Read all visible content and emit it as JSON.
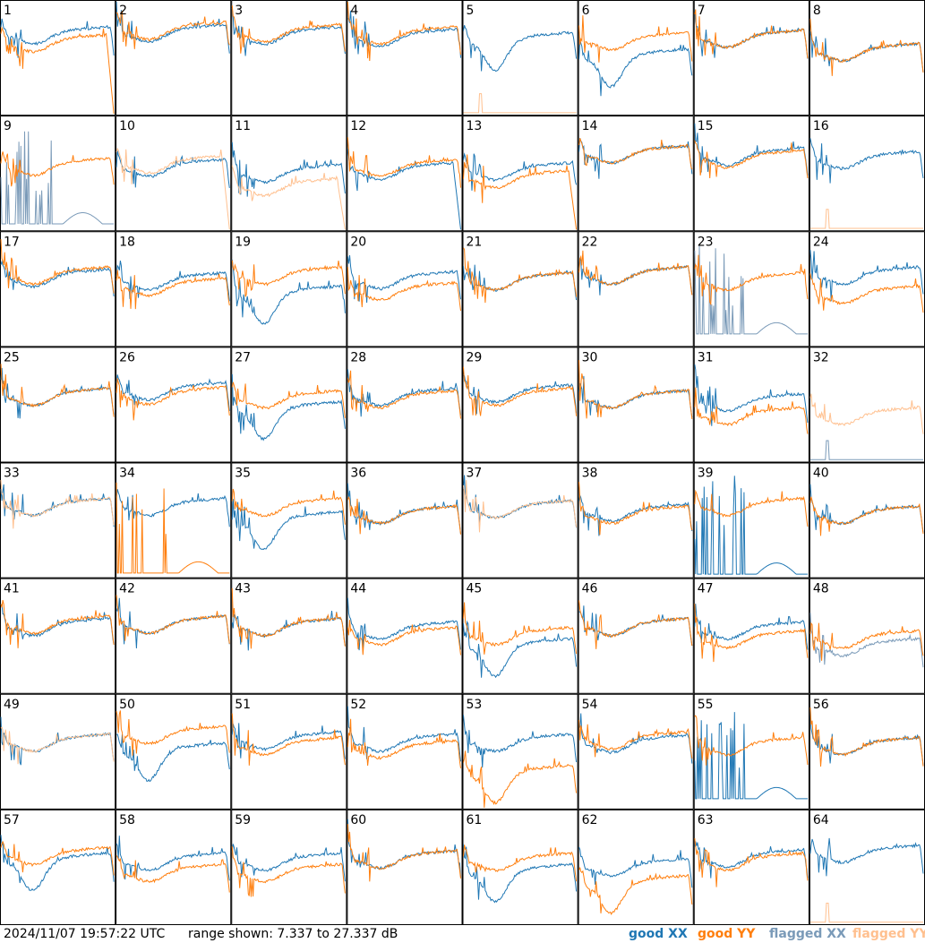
{
  "chart_data": {
    "type": "line",
    "title": "",
    "timestamp": "2024/11/07 19:57:22 UTC",
    "range_label": "range shown: 7.337 to 27.337 dB",
    "ylim": [
      7.337,
      27.337
    ],
    "grid_rows": 8,
    "grid_cols": 8,
    "legend": [
      {
        "key": "goodXX",
        "label": "good XX",
        "color": "#1f77b4"
      },
      {
        "key": "goodYY",
        "label": "good YY",
        "color": "#ff7f0e"
      },
      {
        "key": "flaggedXX",
        "label": "flagged XX",
        "color": "#7a9ab8"
      },
      {
        "key": "flaggedYY",
        "label": "flagged YY",
        "color": "#ffc08f"
      }
    ],
    "panels": [
      {
        "id": 1,
        "xx": {
          "state": "good",
          "style": "regular",
          "lvl": 0.7
        },
        "yy": {
          "state": "good",
          "style": "dropout",
          "lvl": 0.63
        }
      },
      {
        "id": 2,
        "xx": {
          "state": "good",
          "style": "regular",
          "lvl": 0.72
        },
        "yy": {
          "state": "good",
          "style": "regular",
          "lvl": 0.74
        }
      },
      {
        "id": 3,
        "xx": {
          "state": "good",
          "style": "regular",
          "lvl": 0.7
        },
        "yy": {
          "state": "good",
          "style": "regular",
          "lvl": 0.72
        }
      },
      {
        "id": 4,
        "xx": {
          "state": "good",
          "style": "regular",
          "lvl": 0.68
        },
        "yy": {
          "state": "good",
          "style": "regular",
          "lvl": 0.7
        }
      },
      {
        "id": 5,
        "xx": {
          "state": "good",
          "style": "trough",
          "lvl": 0.65
        },
        "yy": {
          "state": "flagged",
          "style": "flat",
          "lvl": 0.01
        }
      },
      {
        "id": 6,
        "xx": {
          "state": "good",
          "style": "trough",
          "lvl": 0.5
        },
        "yy": {
          "state": "good",
          "style": "regular",
          "lvl": 0.65
        }
      },
      {
        "id": 7,
        "xx": {
          "state": "good",
          "style": "regular",
          "lvl": 0.67
        },
        "yy": {
          "state": "good",
          "style": "regular",
          "lvl": 0.67
        }
      },
      {
        "id": 8,
        "xx": {
          "state": "good",
          "style": "regular",
          "lvl": 0.55
        },
        "yy": {
          "state": "good",
          "style": "regular",
          "lvl": 0.55
        }
      },
      {
        "id": 9,
        "xx": {
          "state": "flagged",
          "style": "spiky",
          "lvl": 0.05
        },
        "yy": {
          "state": "good",
          "style": "regular",
          "lvl": 0.56
        }
      },
      {
        "id": 10,
        "xx": {
          "state": "good",
          "style": "regular",
          "lvl": 0.55
        },
        "yy": {
          "state": "flagged",
          "style": "dropout",
          "lvl": 0.58
        }
      },
      {
        "id": 11,
        "xx": {
          "state": "good",
          "style": "regular",
          "lvl": 0.5
        },
        "yy": {
          "state": "flagged",
          "style": "dropout",
          "lvl": 0.38
        }
      },
      {
        "id": 12,
        "xx": {
          "state": "good",
          "style": "dropout",
          "lvl": 0.52
        },
        "yy": {
          "state": "good",
          "style": "regular",
          "lvl": 0.55
        }
      },
      {
        "id": 13,
        "xx": {
          "state": "good",
          "style": "regular",
          "lvl": 0.52
        },
        "yy": {
          "state": "good",
          "style": "dropout",
          "lvl": 0.45
        }
      },
      {
        "id": 14,
        "xx": {
          "state": "good",
          "style": "regular",
          "lvl": 0.67
        },
        "yy": {
          "state": "good",
          "style": "regular",
          "lvl": 0.67
        }
      },
      {
        "id": 15,
        "xx": {
          "state": "good",
          "style": "regular",
          "lvl": 0.65
        },
        "yy": {
          "state": "good",
          "style": "regular",
          "lvl": 0.63
        }
      },
      {
        "id": 16,
        "xx": {
          "state": "good",
          "style": "regular",
          "lvl": 0.62
        },
        "yy": {
          "state": "flagged",
          "style": "flat",
          "lvl": 0.01
        }
      },
      {
        "id": 17,
        "xx": {
          "state": "good",
          "style": "regular",
          "lvl": 0.6
        },
        "yy": {
          "state": "good",
          "style": "regular",
          "lvl": 0.62
        }
      },
      {
        "id": 18,
        "xx": {
          "state": "good",
          "style": "regular",
          "lvl": 0.57
        },
        "yy": {
          "state": "good",
          "style": "regular",
          "lvl": 0.52
        }
      },
      {
        "id": 19,
        "xx": {
          "state": "good",
          "style": "trough",
          "lvl": 0.45
        },
        "yy": {
          "state": "good",
          "style": "regular",
          "lvl": 0.62
        }
      },
      {
        "id": 20,
        "xx": {
          "state": "good",
          "style": "regular",
          "lvl": 0.58
        },
        "yy": {
          "state": "good",
          "style": "regular",
          "lvl": 0.48
        }
      },
      {
        "id": 21,
        "xx": {
          "state": "good",
          "style": "regular",
          "lvl": 0.57
        },
        "yy": {
          "state": "good",
          "style": "regular",
          "lvl": 0.57
        }
      },
      {
        "id": 22,
        "xx": {
          "state": "good",
          "style": "regular",
          "lvl": 0.62
        },
        "yy": {
          "state": "good",
          "style": "regular",
          "lvl": 0.62
        }
      },
      {
        "id": 23,
        "xx": {
          "state": "flagged",
          "style": "spiky",
          "lvl": 0.1
        },
        "yy": {
          "state": "good",
          "style": "regular",
          "lvl": 0.57
        }
      },
      {
        "id": 24,
        "xx": {
          "state": "good",
          "style": "regular",
          "lvl": 0.62
        },
        "yy": {
          "state": "good",
          "style": "regular",
          "lvl": 0.45
        }
      },
      {
        "id": 25,
        "xx": {
          "state": "good",
          "style": "regular",
          "lvl": 0.57
        },
        "yy": {
          "state": "good",
          "style": "regular",
          "lvl": 0.57
        }
      },
      {
        "id": 26,
        "xx": {
          "state": "good",
          "style": "regular",
          "lvl": 0.62
        },
        "yy": {
          "state": "good",
          "style": "regular",
          "lvl": 0.58
        }
      },
      {
        "id": 27,
        "xx": {
          "state": "good",
          "style": "trough",
          "lvl": 0.45
        },
        "yy": {
          "state": "good",
          "style": "regular",
          "lvl": 0.55
        }
      },
      {
        "id": 28,
        "xx": {
          "state": "good",
          "style": "regular",
          "lvl": 0.57
        },
        "yy": {
          "state": "good",
          "style": "regular",
          "lvl": 0.55
        }
      },
      {
        "id": 29,
        "xx": {
          "state": "good",
          "style": "regular",
          "lvl": 0.6
        },
        "yy": {
          "state": "good",
          "style": "regular",
          "lvl": 0.57
        }
      },
      {
        "id": 30,
        "xx": {
          "state": "good",
          "style": "regular",
          "lvl": 0.55
        },
        "yy": {
          "state": "good",
          "style": "regular",
          "lvl": 0.55
        }
      },
      {
        "id": 31,
        "xx": {
          "state": "good",
          "style": "regular",
          "lvl": 0.52
        },
        "yy": {
          "state": "good",
          "style": "regular",
          "lvl": 0.4
        }
      },
      {
        "id": 32,
        "xx": {
          "state": "flagged",
          "style": "flat",
          "lvl": 0.01
        },
        "yy": {
          "state": "flagged",
          "style": "regular",
          "lvl": 0.4
        }
      },
      {
        "id": 33,
        "xx": {
          "state": "good",
          "style": "regular",
          "lvl": 0.62
        },
        "yy": {
          "state": "flagged",
          "style": "regular",
          "lvl": 0.62
        }
      },
      {
        "id": 34,
        "xx": {
          "state": "good",
          "style": "regular",
          "lvl": 0.62
        },
        "yy": {
          "state": "good",
          "style": "spiky",
          "lvl": 0.03
        }
      },
      {
        "id": 35,
        "xx": {
          "state": "good",
          "style": "trough",
          "lvl": 0.5
        },
        "yy": {
          "state": "good",
          "style": "regular",
          "lvl": 0.62
        }
      },
      {
        "id": 36,
        "xx": {
          "state": "good",
          "style": "regular",
          "lvl": 0.55
        },
        "yy": {
          "state": "good",
          "style": "regular",
          "lvl": 0.55
        }
      },
      {
        "id": 37,
        "xx": {
          "state": "good",
          "style": "regular",
          "lvl": 0.6
        },
        "yy": {
          "state": "flagged",
          "style": "regular",
          "lvl": 0.6
        }
      },
      {
        "id": 38,
        "xx": {
          "state": "good",
          "style": "regular",
          "lvl": 0.57
        },
        "yy": {
          "state": "good",
          "style": "regular",
          "lvl": 0.55
        }
      },
      {
        "id": 39,
        "xx": {
          "state": "good",
          "style": "spiky",
          "lvl": 0.02
        },
        "yy": {
          "state": "good",
          "style": "regular",
          "lvl": 0.62
        }
      },
      {
        "id": 40,
        "xx": {
          "state": "good",
          "style": "regular",
          "lvl": 0.55
        },
        "yy": {
          "state": "good",
          "style": "regular",
          "lvl": 0.55
        }
      },
      {
        "id": 41,
        "xx": {
          "state": "good",
          "style": "regular",
          "lvl": 0.58
        },
        "yy": {
          "state": "good",
          "style": "regular",
          "lvl": 0.6
        }
      },
      {
        "id": 42,
        "xx": {
          "state": "good",
          "style": "regular",
          "lvl": 0.6
        },
        "yy": {
          "state": "good",
          "style": "regular",
          "lvl": 0.6
        }
      },
      {
        "id": 43,
        "xx": {
          "state": "good",
          "style": "regular",
          "lvl": 0.58
        },
        "yy": {
          "state": "good",
          "style": "regular",
          "lvl": 0.58
        }
      },
      {
        "id": 44,
        "xx": {
          "state": "good",
          "style": "regular",
          "lvl": 0.55
        },
        "yy": {
          "state": "good",
          "style": "regular",
          "lvl": 0.5
        }
      },
      {
        "id": 45,
        "xx": {
          "state": "good",
          "style": "trough",
          "lvl": 0.4
        },
        "yy": {
          "state": "good",
          "style": "regular",
          "lvl": 0.5
        }
      },
      {
        "id": 46,
        "xx": {
          "state": "good",
          "style": "regular",
          "lvl": 0.58
        },
        "yy": {
          "state": "good",
          "style": "regular",
          "lvl": 0.58
        }
      },
      {
        "id": 47,
        "xx": {
          "state": "good",
          "style": "regular",
          "lvl": 0.55
        },
        "yy": {
          "state": "good",
          "style": "regular",
          "lvl": 0.47
        }
      },
      {
        "id": 48,
        "xx": {
          "state": "flagged",
          "style": "regular",
          "lvl": 0.4
        },
        "yy": {
          "state": "good",
          "style": "regular",
          "lvl": 0.47
        }
      },
      {
        "id": 49,
        "xx": {
          "state": "good",
          "style": "regular",
          "lvl": 0.58
        },
        "yy": {
          "state": "flagged",
          "style": "regular",
          "lvl": 0.58
        }
      },
      {
        "id": 50,
        "xx": {
          "state": "good",
          "style": "trough",
          "lvl": 0.5
        },
        "yy": {
          "state": "good",
          "style": "regular",
          "lvl": 0.65
        }
      },
      {
        "id": 51,
        "xx": {
          "state": "good",
          "style": "regular",
          "lvl": 0.6
        },
        "yy": {
          "state": "good",
          "style": "regular",
          "lvl": 0.55
        }
      },
      {
        "id": 52,
        "xx": {
          "state": "good",
          "style": "regular",
          "lvl": 0.58
        },
        "yy": {
          "state": "good",
          "style": "regular",
          "lvl": 0.52
        }
      },
      {
        "id": 53,
        "xx": {
          "state": "good",
          "style": "regular",
          "lvl": 0.58
        },
        "yy": {
          "state": "good",
          "style": "trough",
          "lvl": 0.3
        }
      },
      {
        "id": 54,
        "xx": {
          "state": "good",
          "style": "regular",
          "lvl": 0.57
        },
        "yy": {
          "state": "good",
          "style": "regular",
          "lvl": 0.6
        }
      },
      {
        "id": 55,
        "xx": {
          "state": "good",
          "style": "spiky",
          "lvl": 0.08
        },
        "yy": {
          "state": "good",
          "style": "regular",
          "lvl": 0.55
        }
      },
      {
        "id": 56,
        "xx": {
          "state": "good",
          "style": "regular",
          "lvl": 0.55
        },
        "yy": {
          "state": "good",
          "style": "regular",
          "lvl": 0.55
        }
      },
      {
        "id": 57,
        "xx": {
          "state": "good",
          "style": "trough",
          "lvl": 0.55
        },
        "yy": {
          "state": "good",
          "style": "regular",
          "lvl": 0.6
        }
      },
      {
        "id": 58,
        "xx": {
          "state": "good",
          "style": "regular",
          "lvl": 0.55
        },
        "yy": {
          "state": "good",
          "style": "regular",
          "lvl": 0.45
        }
      },
      {
        "id": 59,
        "xx": {
          "state": "good",
          "style": "regular",
          "lvl": 0.55
        },
        "yy": {
          "state": "good",
          "style": "regular",
          "lvl": 0.45
        }
      },
      {
        "id": 60,
        "xx": {
          "state": "good",
          "style": "regular",
          "lvl": 0.57
        },
        "yy": {
          "state": "good",
          "style": "regular",
          "lvl": 0.57
        }
      },
      {
        "id": 61,
        "xx": {
          "state": "good",
          "style": "trough",
          "lvl": 0.45
        },
        "yy": {
          "state": "good",
          "style": "regular",
          "lvl": 0.55
        }
      },
      {
        "id": 62,
        "xx": {
          "state": "good",
          "style": "regular",
          "lvl": 0.5
        },
        "yy": {
          "state": "good",
          "style": "trough",
          "lvl": 0.35
        }
      },
      {
        "id": 63,
        "xx": {
          "state": "good",
          "style": "regular",
          "lvl": 0.58
        },
        "yy": {
          "state": "good",
          "style": "regular",
          "lvl": 0.55
        }
      },
      {
        "id": 64,
        "xx": {
          "state": "good",
          "style": "regular",
          "lvl": 0.62
        },
        "yy": {
          "state": "flagged",
          "style": "flat",
          "lvl": 0.01
        }
      }
    ]
  }
}
